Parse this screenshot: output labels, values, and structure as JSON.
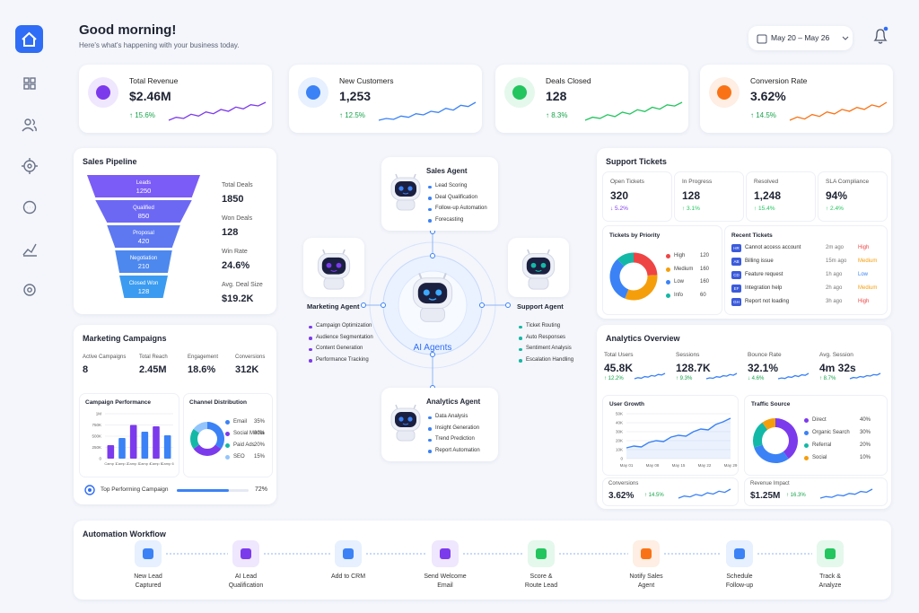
{
  "header": {
    "title": "Good morning!",
    "subtitle": "Here's what's happening with your business today.",
    "date_range": "May 20 – May 26"
  },
  "kpis": [
    {
      "label": "Total Revenue",
      "value": "$2.46M",
      "change": "↑ 15.6%",
      "color": "#7c3aed",
      "trend": [
        3,
        4,
        3.6,
        5,
        4.4,
        5.8,
        5.2,
        6.6,
        6,
        7.4,
        6.8,
        8.2,
        7.8,
        9
      ]
    },
    {
      "label": "New Customers",
      "value": "1,253",
      "change": "↑ 12.5%",
      "color": "#3b82f6",
      "trend": [
        2,
        2.6,
        2.3,
        3.4,
        3,
        4.2,
        3.8,
        5,
        4.6,
        6,
        5.4,
        7,
        6.6,
        8
      ]
    },
    {
      "label": "Deals Closed",
      "value": 128,
      "change": "↑ 8.3%",
      "color": "#22c55e",
      "trend": [
        2,
        3,
        2.6,
        3.8,
        3.2,
        4.6,
        4,
        5.4,
        4.8,
        6.2,
        5.6,
        7,
        6.6,
        7.8
      ]
    },
    {
      "label": "Conversion Rate",
      "value": "3.62%",
      "change": "↑ 14.5%",
      "color": "#f97316",
      "trend": [
        3,
        4,
        3.4,
        4.8,
        4.2,
        5.6,
        5,
        6.4,
        5.8,
        7,
        6.4,
        7.8,
        7.2,
        8.6
      ]
    }
  ],
  "sales_pipeline": {
    "title": "Sales Pipeline",
    "stages": [
      {
        "name": "Leads",
        "value": 1250,
        "color": "#7b5cf6"
      },
      {
        "name": "Qualified",
        "value": 850,
        "color": "#6d68f4"
      },
      {
        "name": "Proposal",
        "value": 420,
        "color": "#5d78f1"
      },
      {
        "name": "Negotiation",
        "value": 210,
        "color": "#4d88ee"
      },
      {
        "name": "Closed Won",
        "value": 128,
        "color": "#3b9bf0"
      }
    ],
    "stats": [
      {
        "label": "Total Deals",
        "value": 1850
      },
      {
        "label": "Won Deals",
        "value": 128
      },
      {
        "label": "Win Rate",
        "value": "24.6%"
      },
      {
        "label": "Avg. Deal Size",
        "value": "$19.2K"
      }
    ]
  },
  "agents": {
    "center": "AI Agents",
    "list": [
      {
        "name": "Sales Agent",
        "color": "#3b82f6",
        "tasks": [
          "Lead Scoring",
          "Deal Qualification",
          "Follow-up Automation",
          "Forecasting"
        ]
      },
      {
        "name": "Marketing Agent",
        "color": "#7c3aed",
        "tasks": [
          "Campaign Optimization",
          "Audience Segmentation",
          "Content Generation",
          "Performance Tracking"
        ]
      },
      {
        "name": "Support Agent",
        "color": "#14b8a6",
        "tasks": [
          "Ticket Routing",
          "Auto Responses",
          "Sentiment Analysis",
          "Escalation Handling"
        ]
      },
      {
        "name": "Analytics Agent",
        "color": "#3b82f6",
        "tasks": [
          "Data Analysis",
          "Insight Generation",
          "Trend Prediction",
          "Report Automation"
        ]
      }
    ]
  },
  "marketing": {
    "title": "Marketing Campaigns",
    "stats": [
      {
        "label": "Active Campaigns",
        "value": 8
      },
      {
        "label": "Total Reach",
        "value": "2.45M"
      },
      {
        "label": "Engagement",
        "value": "18.6%"
      },
      {
        "label": "Conversions",
        "value": "312K"
      }
    ],
    "performance": {
      "title": "Campaign Performance",
      "categories": [
        "Camp 1",
        "Camp 2",
        "Camp 3",
        "Camp 4",
        "Camp 5",
        "Camp 6"
      ],
      "values": [
        300000,
        460000,
        750000,
        600000,
        720000,
        520000
      ],
      "colors": [
        "#7c3aed",
        "#3b82f6"
      ],
      "ylim": [
        0,
        1000000
      ],
      "yticks": [
        0,
        {
          "value": 250000,
          "label": "250K"
        },
        {
          "value": 500000,
          "label": "500K"
        },
        {
          "value": 750000,
          "label": "750K"
        },
        {
          "value": 1000000,
          "label": "1M"
        }
      ]
    },
    "channels": {
      "title": "Channel Distribution",
      "series": [
        {
          "name": "Email",
          "value": 35,
          "value_label": "35%",
          "color": "#3b82f6"
        },
        {
          "name": "Social Media",
          "value": 30,
          "value_label": "30%",
          "color": "#7c3aed"
        },
        {
          "name": "Paid Ads",
          "value": 20,
          "value_label": "20%",
          "color": "#14b8a6"
        },
        {
          "name": "SEO",
          "value": 15,
          "value_label": "15%",
          "color": "#93c5fd"
        }
      ]
    },
    "top_campaign": {
      "label": "Top Performing Campaign",
      "value": 72,
      "value_label": "72%"
    }
  },
  "support": {
    "title": "Support Tickets",
    "stats": [
      {
        "label": "Open Tickets",
        "value": 320,
        "change": "↓ 5.2%",
        "color": "#7c3aed"
      },
      {
        "label": "In Progress",
        "value": 128,
        "change": "↑ 3.1%",
        "color": "#22c55e"
      },
      {
        "label": "Resolved",
        "value": "1,248",
        "change": "↑ 15.4%",
        "color": "#22c55e"
      },
      {
        "label": "SLA Compliance",
        "value": "94%",
        "change": "↑ 2.4%",
        "color": "#22c55e"
      }
    ],
    "priority": {
      "title": "Tickets by Priority",
      "series": [
        {
          "name": "High",
          "value": 120,
          "color": "#ef4444"
        },
        {
          "name": "Medium",
          "value": 160,
          "color": "#f59e0b"
        },
        {
          "name": "Low",
          "value": 160,
          "color": "#3b82f6"
        },
        {
          "name": "Info",
          "value": 60,
          "color": "#14b8a6"
        }
      ]
    },
    "recent": {
      "title": "Recent Tickets",
      "rows": [
        {
          "tag": "HR",
          "title": "Cannot access account",
          "time": "2m ago",
          "priority": "High",
          "color": "#ef4444"
        },
        {
          "tag": "AB",
          "title": "Billing issue",
          "time": "15m ago",
          "priority": "Medium",
          "color": "#f59e0b"
        },
        {
          "tag": "CD",
          "title": "Feature request",
          "time": "1h ago",
          "priority": "Low",
          "color": "#3b82f6"
        },
        {
          "tag": "EF",
          "title": "Integration help",
          "time": "2h ago",
          "priority": "Medium",
          "color": "#f59e0b"
        },
        {
          "tag": "GH",
          "title": "Report not loading",
          "time": "3h ago",
          "priority": "High",
          "color": "#ef4444"
        }
      ]
    }
  },
  "analytics": {
    "title": "Analytics Overview",
    "stats": [
      {
        "label": "Total Users",
        "value": "45.8K",
        "change": "↑ 12.2%",
        "trend": [
          2,
          3,
          2.5,
          4,
          3.5,
          5,
          4.4,
          6,
          5.5,
          7
        ]
      },
      {
        "label": "Sessions",
        "value": "128.7K",
        "change": "↑ 9.3%",
        "trend": [
          2,
          2.8,
          2.4,
          3.8,
          3.3,
          4.6,
          4.2,
          5.6,
          5,
          6.6
        ]
      },
      {
        "label": "Bounce Rate",
        "value": "32.1%",
        "change": "↓ 4.6%",
        "trend": [
          3,
          3.6,
          3.2,
          4.4,
          4,
          5.2,
          4.6,
          5.8,
          5.4,
          6.8
        ]
      },
      {
        "label": "Avg. Session",
        "value": "4m 32s",
        "change": "↑ 8.7%",
        "trend": [
          2,
          3.2,
          2.8,
          4.2,
          3.6,
          5,
          4.6,
          6,
          5.6,
          7.2
        ]
      }
    ],
    "growth": {
      "title": "User Growth",
      "color": "#3b82f6",
      "x": [
        1,
        3,
        5,
        7,
        9,
        11,
        13,
        15,
        17,
        19,
        21,
        23,
        25,
        27,
        29
      ],
      "values": [
        12000,
        14000,
        13000,
        18000,
        20000,
        19000,
        24000,
        26000,
        25000,
        30000,
        33000,
        32000,
        38000,
        41000,
        45000
      ],
      "xlim": [
        1,
        29
      ],
      "xticks": [
        {
          "value": 1,
          "label": "May 01"
        },
        {
          "value": 8,
          "label": "May 08"
        },
        {
          "value": 15,
          "label": "May 15"
        },
        {
          "value": 22,
          "label": "May 22"
        },
        {
          "value": 29,
          "label": "May 29"
        }
      ],
      "ylim": [
        0,
        50000
      ],
      "yticks": [
        0,
        {
          "value": 10000,
          "label": "10K"
        },
        {
          "value": 20000,
          "label": "20K"
        },
        {
          "value": 30000,
          "label": "30K"
        },
        {
          "value": 40000,
          "label": "40K"
        },
        {
          "value": 50000,
          "label": "50K"
        }
      ]
    },
    "traffic": {
      "title": "Traffic Source",
      "series": [
        {
          "name": "Direct",
          "value": 40,
          "value_label": "40%",
          "color": "#7c3aed"
        },
        {
          "name": "Organic Search",
          "value": 30,
          "value_label": "30%",
          "color": "#3b82f6"
        },
        {
          "name": "Referral",
          "value": 20,
          "value_label": "20%",
          "color": "#14b8a6"
        },
        {
          "name": "Social",
          "value": 10,
          "value_label": "10%",
          "color": "#f59e0b"
        }
      ]
    },
    "bottom": [
      {
        "label": "Conversions",
        "value": "3.62%",
        "change": "↑ 14.5%",
        "trend": [
          2,
          3,
          2.6,
          3.8,
          3.2,
          4.6,
          4,
          5.4,
          4.8,
          6.4
        ]
      },
      {
        "label": "Revenue Impact",
        "value": "$1.25M",
        "change": "↑ 16.3%",
        "trend": [
          2,
          2.8,
          2.4,
          3.6,
          3.2,
          4.4,
          4,
          5.4,
          5,
          6.6
        ]
      }
    ]
  },
  "workflow": {
    "title": "Automation Workflow",
    "steps": [
      {
        "label": "New Lead\nCaptured",
        "color": "#3b82f6"
      },
      {
        "label": "AI Lead\nQualification",
        "color": "#7c3aed"
      },
      {
        "label": "Add to CRM",
        "color": "#3b82f6"
      },
      {
        "label": "Send Welcome\nEmail",
        "color": "#7c3aed"
      },
      {
        "label": "Score &\nRoute Lead",
        "color": "#22c55e"
      },
      {
        "label": "Notify Sales\nAgent",
        "color": "#f97316"
      },
      {
        "label": "Schedule\nFollow-up",
        "color": "#3b82f6"
      },
      {
        "label": "Track &\nAnalyze",
        "color": "#22c55e"
      }
    ]
  }
}
